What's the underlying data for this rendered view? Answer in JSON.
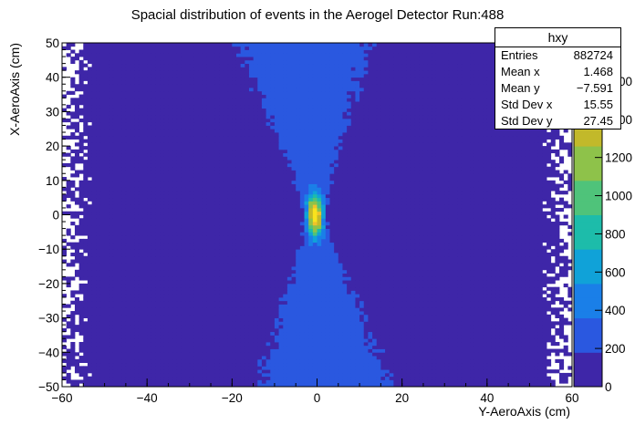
{
  "chart_data": {
    "type": "heatmap",
    "title": "Spacial distribution of events in the Aerogel Detector Run:488",
    "xlabel": "Y-AeroAxis (cm)",
    "ylabel": "X-AeroAxis (cm)",
    "xlim": [
      -60,
      60
    ],
    "ylim": [
      -50,
      50
    ],
    "x_ticks": [
      "−60",
      "−40",
      "−20",
      "0",
      "20",
      "40",
      "60"
    ],
    "y_ticks": [
      "−50",
      "−40",
      "−30",
      "−20",
      "−10",
      "0",
      "10",
      "20",
      "30",
      "40",
      "50"
    ],
    "colorbar": {
      "min": 0,
      "max": 1800,
      "ticks": [
        "0",
        "200",
        "400",
        "600",
        "800",
        "1000",
        "1200",
        "1400",
        "1600"
      ]
    },
    "distribution": {
      "shape": "hourglass",
      "peak_value": 1700,
      "peak_x": -0.5,
      "peak_y": 0,
      "peak_sigma_x": 0.8,
      "peak_sigma_y": 4,
      "background_level": 20
    },
    "stats": {
      "title": "hxy",
      "entries_label": "Entries",
      "entries": "882724",
      "mean_x_label": "Mean x",
      "mean_x": "1.468",
      "mean_y_label": "Mean y",
      "mean_y": "−7.591",
      "std_x_label": "Std Dev x",
      "std_x": "15.55",
      "std_y_label": "Std Dev y",
      "std_y": "27.45"
    },
    "palette": [
      "#3e26a8",
      "#2a58e0",
      "#1a7fe8",
      "#10a2d8",
      "#1dbcaa",
      "#4fc37a",
      "#8ec24a",
      "#c2b92a",
      "#f0c22a",
      "#f9e31c"
    ]
  }
}
